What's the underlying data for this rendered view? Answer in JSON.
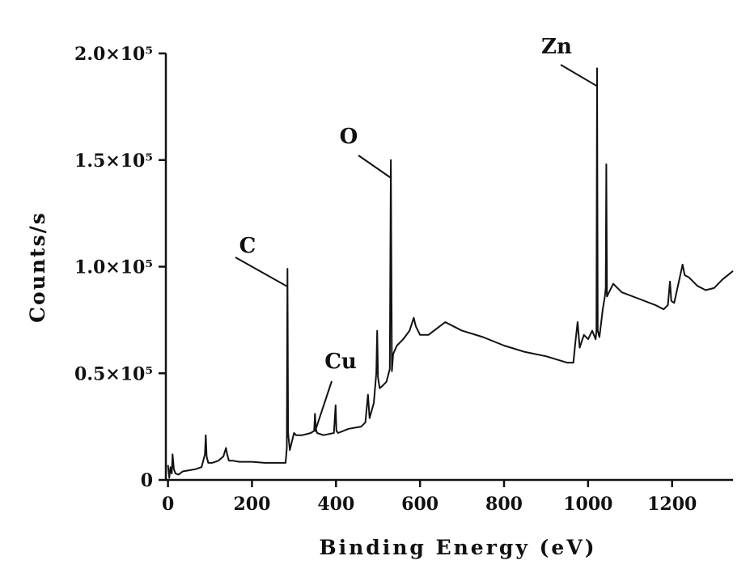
{
  "chart_data": {
    "type": "line",
    "xlabel": "Binding Energy (eV)",
    "ylabel": "Counts/s",
    "xlim": [
      -5,
      1345
    ],
    "ylim": [
      0,
      200000
    ],
    "x_ticks": [
      0,
      200,
      400,
      600,
      800,
      1000,
      1200
    ],
    "y_ticks": [
      {
        "value": 0,
        "label": "0"
      },
      {
        "value": 50000,
        "label": "0.5×10⁵"
      },
      {
        "value": 100000,
        "label": "1.0×10⁵"
      },
      {
        "value": 150000,
        "label": "1.5×10⁵"
      },
      {
        "value": 200000,
        "label": "2.0×10⁵"
      }
    ],
    "grid": false,
    "legend": "none",
    "series": [
      {
        "color": "#111111",
        "x": [
          0,
          3,
          6,
          9,
          11,
          14,
          18,
          25,
          35,
          50,
          65,
          80,
          88,
          90,
          92,
          96,
          105,
          120,
          132,
          138,
          141,
          145,
          155,
          170,
          200,
          230,
          260,
          280,
          283,
          284.5,
          286,
          290,
          300,
          305,
          320,
          340,
          348,
          350,
          352,
          355,
          370,
          395,
          399,
          401,
          405,
          430,
          460,
          470,
          476,
          480,
          490,
          496,
          498,
          500,
          504,
          510,
          520,
          528,
          530.5,
          533,
          536,
          545,
          560,
          575,
          585,
          590,
          600,
          620,
          640,
          660,
          680,
          700,
          750,
          800,
          850,
          900,
          950,
          965,
          970,
          975,
          980,
          990,
          1000,
          1010,
          1018,
          1020,
          1021.5,
          1023,
          1027,
          1035,
          1040,
          1042,
          1043.5,
          1045,
          1050,
          1060,
          1080,
          1120,
          1160,
          1180,
          1190,
          1195,
          1198,
          1205,
          1215,
          1225,
          1230,
          1240,
          1260,
          1280,
          1300,
          1320,
          1345
        ],
        "y": [
          7000,
          1000,
          6000,
          3000,
          12000,
          5000,
          3000,
          2500,
          4000,
          4500,
          5000,
          6000,
          12000,
          21000,
          11000,
          8000,
          8000,
          9000,
          11000,
          15000,
          12000,
          9000,
          9000,
          8500,
          8500,
          8000,
          8000,
          8000,
          15000,
          99000,
          22000,
          14000,
          22000,
          21000,
          21000,
          22000,
          23000,
          31000,
          24000,
          22000,
          21000,
          22000,
          35000,
          23000,
          22000,
          24000,
          25000,
          27000,
          40000,
          29000,
          36000,
          50000,
          70000,
          48000,
          43000,
          44000,
          46000,
          52000,
          150000,
          51000,
          59000,
          63000,
          66000,
          70000,
          76000,
          72000,
          68000,
          68000,
          71000,
          74000,
          72000,
          70000,
          67000,
          63000,
          60000,
          58000,
          55000,
          55000,
          65000,
          74000,
          62000,
          68000,
          66000,
          70000,
          66000,
          70000,
          193000,
          70000,
          67000,
          80000,
          86000,
          90000,
          148000,
          86000,
          88000,
          92000,
          88000,
          85000,
          82000,
          80000,
          82000,
          93000,
          84000,
          83000,
          92000,
          101000,
          96000,
          95000,
          91000,
          89000,
          90000,
          94000,
          98000
        ]
      }
    ],
    "annotations": [
      {
        "text": "C",
        "x": 284.5
      },
      {
        "text": "Cu",
        "x": 350
      },
      {
        "text": "O",
        "x": 530.5
      },
      {
        "text": "Zn",
        "x": 1021.5
      }
    ]
  }
}
